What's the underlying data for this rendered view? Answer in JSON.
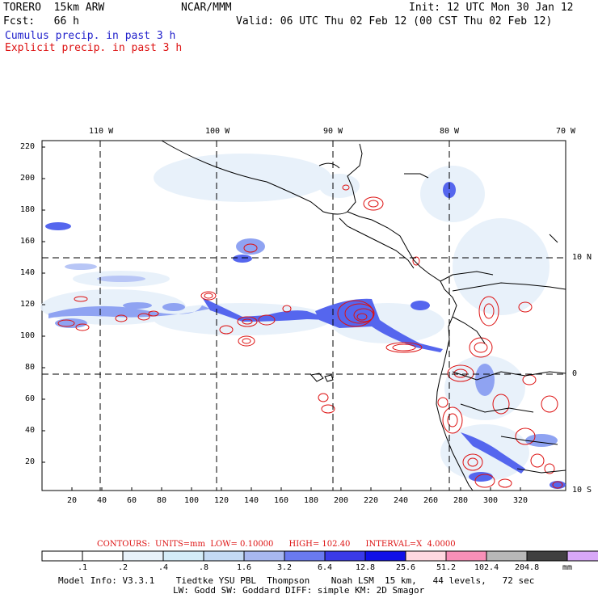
{
  "header": {
    "model": "TORERO  15km ARW",
    "org": "NCAR/MMM",
    "init": "Init: 12 UTC Mon 30 Jan 12",
    "fcst": "Fcst:   66 h",
    "valid": "Valid: 06 UTC Thu 02 Feb 12 (00 CST Thu 02 Feb 12)",
    "cumulus": "Cumulus precip. in past 3 h",
    "explicit": "Explicit precip. in past 3 h"
  },
  "colors": {
    "cumulus": "#2222cc",
    "explicit": "#dd1111"
  },
  "map": {
    "lon_labels": [
      "110 W",
      "100 W",
      "90 W",
      "80 W",
      "70 W"
    ],
    "lat_labels": [
      "10 N",
      "0",
      "10 S"
    ],
    "y_ticks": [
      "220",
      "200",
      "180",
      "160",
      "140",
      "120",
      "100",
      "80",
      "60",
      "40",
      "20"
    ],
    "x_ticks": [
      "20",
      "40",
      "60",
      "80",
      "100",
      "120",
      "140",
      "160",
      "180",
      "200",
      "220",
      "240",
      "260",
      "280",
      "300",
      "320"
    ]
  },
  "contours": {
    "prefix": "CONTOURS:",
    "units": "UNITS=mm",
    "low": "LOW= 0.10000",
    "high": "HIGH= 102.40",
    "interval": "INTERVAL=X  4.0000"
  },
  "colorbar": {
    "labels": [
      ".1",
      ".2",
      ".4",
      ".8",
      "1.6",
      "3.2",
      "6.4",
      "12.8",
      "25.6",
      "51.2",
      "102.4",
      "204.8"
    ],
    "unit": "mm",
    "colors": [
      "#ffffff",
      "#ffffff",
      "#e8f2fa",
      "#d4ecf8",
      "#c4daf4",
      "#a8b8f0",
      "#6a7af0",
      "#3a3ae8",
      "#1010e8",
      "#ffd8e0",
      "#f890b8",
      "#b8b8b8",
      "#404040",
      "#d8a8f8"
    ]
  },
  "model_info": {
    "line1": "Model Info: V3.3.1    Tiedtke YSU PBL  Thompson    Noah LSM  15 km,   44 levels,   72 sec",
    "line2": "LW: Godd SW: Goddard DIFF: simple KM: 2D Smagor"
  }
}
